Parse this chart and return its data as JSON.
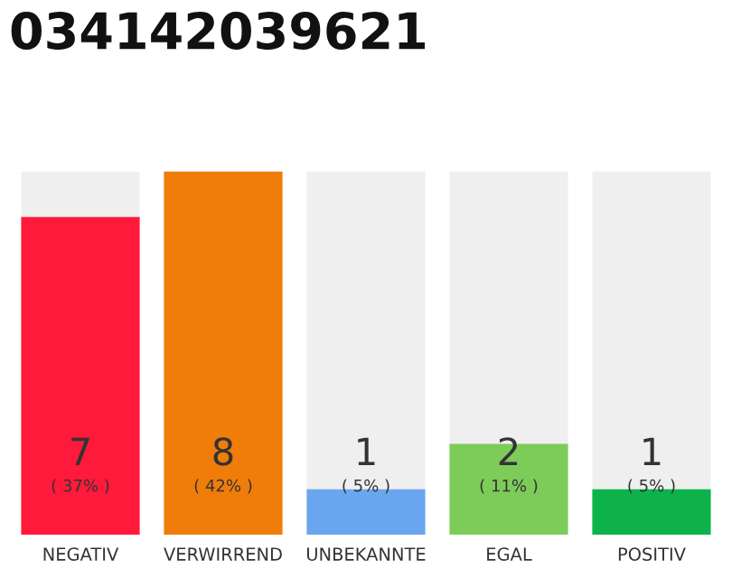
{
  "chart_data": {
    "type": "bar",
    "title": "034142039621",
    "categories": [
      "NEGATIV",
      "VERWIRREND",
      "UNBEKANNTE",
      "EGAL",
      "POSITIV"
    ],
    "values": [
      7,
      8,
      1,
      2,
      1
    ],
    "colors": [
      "#ff1a3c",
      "#f07d0a",
      "#6aa6ef",
      "#7dcc5a",
      "#0db34a"
    ],
    "data_labels": true,
    "annotations": [
      {
        "text": "( 37% )",
        "x": "NEGATIV",
        "y": 0
      },
      {
        "text": "( 42% )",
        "x": "VERWIRREND",
        "y": 0
      },
      {
        "text": "( 5% )",
        "x": "UNBEKANNTE",
        "y": 0
      },
      {
        "text": "( 11% )",
        "x": "EGAL",
        "y": 0
      },
      {
        "text": "( 5% )",
        "x": "POSITIV",
        "y": 0
      }
    ],
    "grid": false,
    "legend": false
  }
}
